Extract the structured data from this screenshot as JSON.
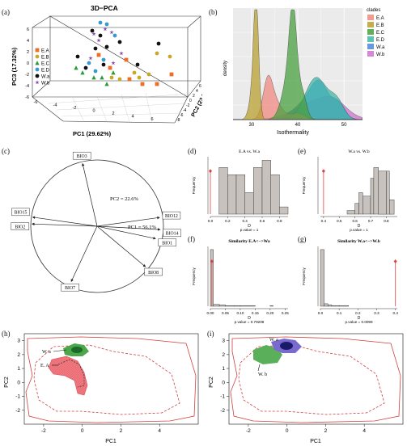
{
  "panels": {
    "a": "(a)",
    "b": "(b)",
    "c": "(c)",
    "d": "(d)",
    "e": "(e)",
    "f": "(f)",
    "g": "(g)",
    "h": "(h)",
    "i": "(i)"
  },
  "chart_data": [
    {
      "id": "a",
      "type": "scatter",
      "title": "3D−PCA",
      "xlabel": "PC1 (29.62%)",
      "ylabel": "PC3 (17.32%)",
      "zlabel": "PC2 (23.25%)",
      "pc3_ticks": [
        "6",
        "4",
        "2",
        "0",
        "-2",
        "-4",
        "-6"
      ],
      "pc1_ticks": [
        "-6",
        "-4",
        "-2",
        "0",
        "2",
        "4",
        "6"
      ],
      "pc2_ticks": [
        "-8",
        "-6",
        "-4",
        "-2",
        "0",
        "2",
        "4",
        "6"
      ],
      "legend": [
        {
          "name": "E.A",
          "color": "#e8702a",
          "marker": "square"
        },
        {
          "name": "E.B",
          "color": "#c8a82a",
          "marker": "circle"
        },
        {
          "name": "E.C",
          "color": "#2a9a3a",
          "marker": "triangle"
        },
        {
          "name": "E.D",
          "color": "#3a9ad0",
          "marker": "circle"
        },
        {
          "name": "W.a",
          "color": "#111111",
          "marker": "circle"
        },
        {
          "name": "W.b",
          "color": "#8a4ab0",
          "marker": "star"
        }
      ]
    },
    {
      "id": "b",
      "type": "area",
      "xlabel": "Isothermality",
      "ylabel": "density",
      "x_ticks": [
        "30",
        "40",
        "50"
      ],
      "legend_title": "clades",
      "series": [
        {
          "name": "E.A",
          "color": "#f08a80"
        },
        {
          "name": "E.B",
          "color": "#b8a030"
        },
        {
          "name": "E.C",
          "color": "#4aa040"
        },
        {
          "name": "E.D",
          "color": "#40b8a8"
        },
        {
          "name": "W.a",
          "color": "#4a8ad8"
        },
        {
          "name": "W.b",
          "color": "#d070d0"
        }
      ]
    },
    {
      "id": "c",
      "type": "biplot",
      "pc1": "PC1 = 56.1%",
      "pc2": "PC2 = 22.6%",
      "vectors": [
        {
          "name": "BIO3",
          "angle_deg": 103,
          "length": 0.97
        },
        {
          "name": "BIO12",
          "angle_deg": 8,
          "length": 0.95
        },
        {
          "name": "BIO14",
          "angle_deg": -3,
          "length": 0.95
        },
        {
          "name": "BIO1",
          "angle_deg": -12,
          "length": 0.9
        },
        {
          "name": "BIO8",
          "angle_deg": -40,
          "length": 0.95
        },
        {
          "name": "BIO7",
          "angle_deg": -115,
          "length": 0.92
        },
        {
          "name": "BIO15",
          "angle_deg": 172,
          "length": 0.98
        },
        {
          "name": "BIO2",
          "angle_deg": 178,
          "length": 0.98
        }
      ]
    },
    {
      "id": "d",
      "type": "bar",
      "title": "E.A vs. W.a",
      "xlabel": "D",
      "ylabel": "Frequency",
      "pvalue": "p.value = 1",
      "x_ticks": [
        "0.0",
        "0.2",
        "0.4",
        "0.6",
        "0.8"
      ],
      "bins": [
        [
          0.1,
          0.2,
          13
        ],
        [
          0.2,
          0.3,
          11
        ],
        [
          0.3,
          0.4,
          11
        ],
        [
          0.4,
          0.5,
          6
        ],
        [
          0.5,
          0.6,
          13
        ],
        [
          0.6,
          0.7,
          15
        ],
        [
          0.7,
          0.8,
          11
        ],
        [
          0.8,
          0.9,
          2
        ]
      ],
      "observed": 0.0,
      "xlim": [
        0,
        0.9
      ],
      "ylim": [
        0,
        16
      ]
    },
    {
      "id": "e",
      "type": "bar",
      "title": "W.a vs. W.b",
      "xlabel": "D",
      "ylabel": "Frequency",
      "pvalue": "p.value = 1",
      "x_ticks": [
        "0.4",
        "0.5",
        "0.6",
        "0.7",
        "0.8"
      ],
      "bins": [
        [
          0.55,
          0.6,
          1
        ],
        [
          0.6,
          0.625,
          3
        ],
        [
          0.625,
          0.65,
          6
        ],
        [
          0.65,
          0.7,
          5
        ],
        [
          0.7,
          0.72,
          10
        ],
        [
          0.72,
          0.75,
          13
        ],
        [
          0.75,
          0.8,
          12
        ],
        [
          0.8,
          0.82,
          12
        ],
        [
          0.82,
          0.85,
          4
        ]
      ],
      "observed": 0.4,
      "xlim": [
        0.38,
        0.87
      ],
      "ylim": [
        0,
        16
      ]
    },
    {
      "id": "f",
      "type": "bar",
      "title": "Similarity E.A<−>Wa",
      "xlabel": "D",
      "ylabel": "Frequency",
      "pvalue": "p.value = 0.79208",
      "x_ticks": [
        "0.00",
        "0.05",
        "0.10",
        "0.15",
        "0.20",
        "0.25"
      ],
      "bins": [
        [
          0,
          0.01,
          90
        ],
        [
          0.01,
          0.03,
          3
        ],
        [
          0.03,
          0.05,
          2
        ],
        [
          0.05,
          0.08,
          1
        ],
        [
          0.08,
          0.1,
          1
        ],
        [
          0.1,
          0.15,
          1
        ],
        [
          0.2,
          0.21,
          1
        ]
      ],
      "observed": 0.005,
      "xlim": [
        0,
        0.26
      ],
      "ylim": [
        0,
        95
      ]
    },
    {
      "id": "g",
      "type": "bar",
      "title": "Similarity W.a<−>W.b",
      "xlabel": "D",
      "ylabel": "Frequency",
      "pvalue": "p.value = 0.0099",
      "x_ticks": [
        "0.0",
        "0.1",
        "0.2",
        "0.3",
        "0.4"
      ],
      "bins": [
        [
          0,
          0.02,
          90
        ],
        [
          0.02,
          0.04,
          4
        ],
        [
          0.04,
          0.06,
          2
        ],
        [
          0.06,
          0.1,
          1
        ],
        [
          0.1,
          0.15,
          1
        ]
      ],
      "observed": 0.4,
      "xlim": [
        0,
        0.41
      ],
      "ylim": [
        0,
        95
      ]
    },
    {
      "id": "h",
      "type": "heatmap",
      "xlabel": "PC1",
      "ylabel": "PC2",
      "x_ticks": [
        "-2",
        "0",
        "2",
        "4"
      ],
      "y_ticks": [
        "-2",
        "-1",
        "0",
        "1",
        "2",
        "3"
      ],
      "annotations": [
        "W. a",
        "E. A"
      ]
    },
    {
      "id": "i",
      "type": "heatmap",
      "xlabel": "PC1",
      "ylabel": "PC2",
      "x_ticks": [
        "-2",
        "0",
        "2",
        "4"
      ],
      "y_ticks": [
        "-2",
        "-1",
        "0",
        "1",
        "2",
        "3"
      ],
      "annotations": [
        "W. a",
        "W. b"
      ]
    }
  ]
}
